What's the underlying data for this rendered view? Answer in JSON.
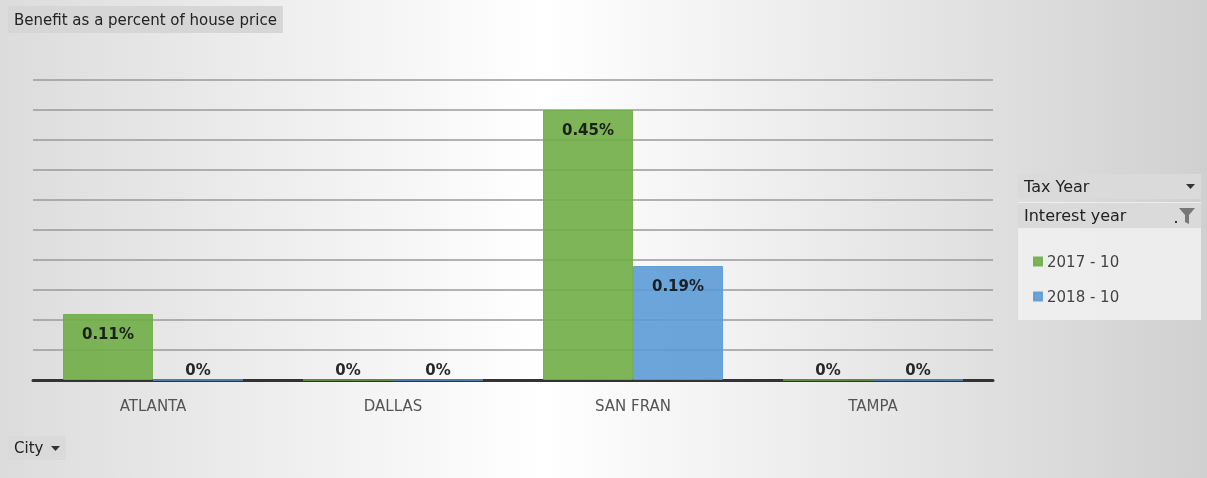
{
  "chart_data": {
    "type": "bar",
    "title": "Benefit as a percent of house price",
    "legend_title": "Interest year",
    "annotations": [
      "Tax Year",
      "City"
    ],
    "categories": [
      "ATLANTA",
      "DALLAS",
      "SAN FRAN",
      "TAMPA"
    ],
    "series": [
      {
        "name": "2017 - 10",
        "color": "#70ad47",
        "values": [
          0.11,
          0,
          0.45,
          0
        ],
        "value_labels": [
          "0.11%",
          "0%",
          "0.45%",
          "0%"
        ]
      },
      {
        "name": "2018 - 10",
        "color": "#5b9bd5",
        "values": [
          0,
          0,
          0.19,
          0
        ],
        "value_labels": [
          "0%",
          "0%",
          "0.19%",
          "0%"
        ]
      }
    ],
    "ylim": [
      0,
      0.5
    ],
    "yticks": [
      {
        "value": 0,
        "label": null
      },
      {
        "value": 0.05,
        "label": null
      },
      {
        "value": 0.1,
        "label": null
      },
      {
        "value": 0.15,
        "label": null
      },
      {
        "value": 0.2,
        "label": null
      },
      {
        "value": 0.25,
        "label": null
      },
      {
        "value": 0.3,
        "label": null
      },
      {
        "value": 0.35,
        "label": null
      },
      {
        "value": 0.4,
        "label": null
      },
      {
        "value": 0.45,
        "label": null
      },
      {
        "value": 0.5,
        "label": null
      }
    ],
    "tick_labels": "x",
    "grid": "y",
    "legend": "right"
  }
}
